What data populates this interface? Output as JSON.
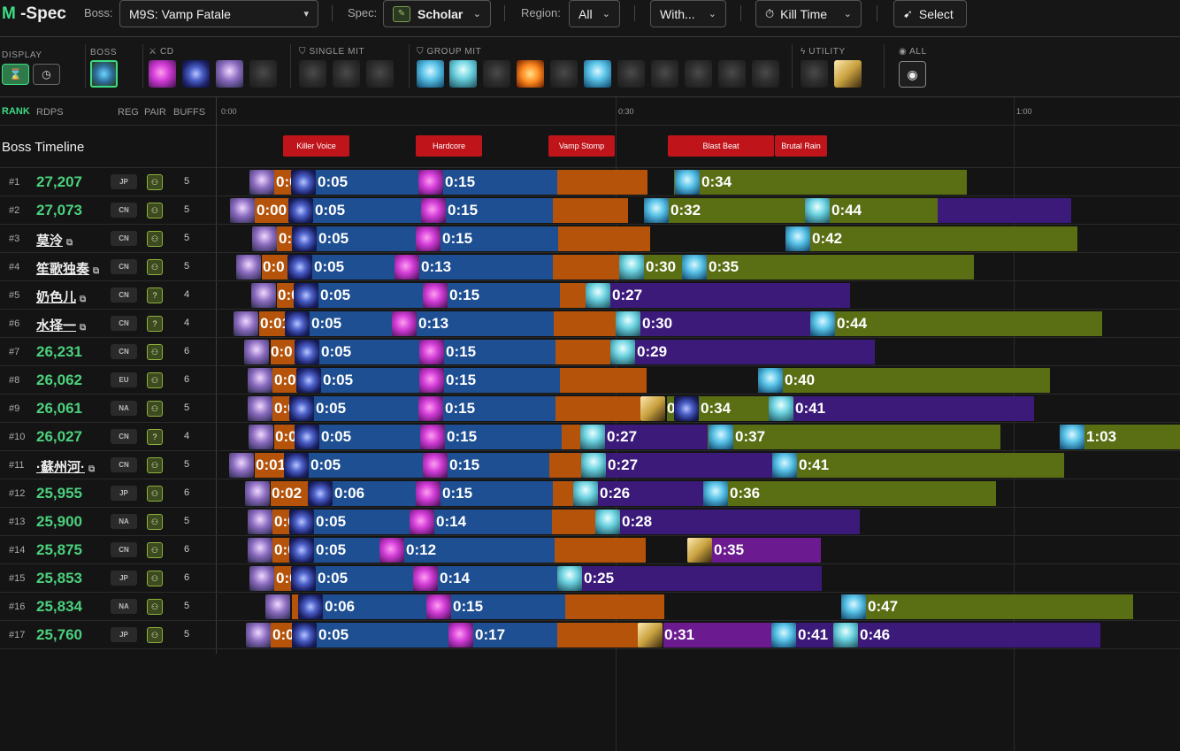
{
  "app": {
    "logo_m": "M",
    "logo_rest": " -Spec"
  },
  "topbar": {
    "boss_label": "Boss:",
    "boss_value": "M9S: Vamp Fatale",
    "spec_label": "Spec:",
    "spec_value": "Scholar",
    "region_label": "Region:",
    "region_value": "All",
    "with_value": "With...",
    "killtime_value": "Kill Time",
    "select_value": "Select"
  },
  "filters": {
    "display": "DISPLAY",
    "boss": "BOSS",
    "cd": "CD",
    "single_mit": "SINGLE MIT",
    "group_mit": "GROUP MIT",
    "utility": "UTILITY",
    "all": "ALL"
  },
  "columns": {
    "rank": "RANK",
    "rdps": "RDPS",
    "reg": "REG",
    "pair": "PAIR",
    "buffs": "BUFFS"
  },
  "timeline": {
    "ticks": [
      "0:00",
      "0:30",
      "1:00"
    ],
    "boss_label": "Boss Timeline",
    "mechanics": [
      "Killer Voice",
      "Hardcore",
      "Vamp Stomp",
      "Blast Beat",
      "Brutal Rain"
    ]
  },
  "rows": [
    {
      "rank": "#1",
      "name": "27,207",
      "reg": "JP",
      "buffs": "5",
      "l0": "0:0",
      "l1": "0:05",
      "l2": "0:15",
      "extra": [
        {
          "t": "0:34"
        }
      ]
    },
    {
      "rank": "#2",
      "name": "27,073",
      "reg": "CN",
      "buffs": "5",
      "l0": "0:00",
      "l1": "0:05",
      "l2": "0:15",
      "extra": [
        {
          "t": "0:32"
        },
        {
          "t": "0:44"
        }
      ]
    },
    {
      "rank": "#3",
      "name": "莫泠",
      "reg": "CN",
      "buffs": "5",
      "l0": "0:0",
      "l1": "0:05",
      "l2": "0:15",
      "extra": [
        {
          "t": "0:42"
        }
      ]
    },
    {
      "rank": "#4",
      "name": "笙歌独奏",
      "reg": "CN",
      "buffs": "5",
      "l0": "0:0",
      "l1": "0:05",
      "l2": "0:13",
      "extra": [
        {
          "t": "0:30"
        },
        {
          "t": "0:35"
        }
      ]
    },
    {
      "rank": "#5",
      "name": "奶色儿",
      "reg": "CN",
      "buffs": "4",
      "l0": "0:0",
      "l1": "0:05",
      "l2": "0:15",
      "extra": [
        {
          "t": "0:27"
        }
      ]
    },
    {
      "rank": "#6",
      "name": "水择一",
      "reg": "CN",
      "buffs": "4",
      "l0": "0:01",
      "l1": "0:05",
      "l2": "0:13",
      "extra": [
        {
          "t": "0:30"
        },
        {
          "t": "0:44"
        }
      ]
    },
    {
      "rank": "#7",
      "name": "26,231",
      "reg": "CN",
      "buffs": "6",
      "l0": "0:0",
      "l1": "0:05",
      "l2": "0:15",
      "extra": [
        {
          "t": "0:29"
        }
      ]
    },
    {
      "rank": "#8",
      "name": "26,062",
      "reg": "EU",
      "buffs": "6",
      "l0": "0:0",
      "l1": "0:05",
      "l2": "0:15",
      "extra": [
        {
          "t": "0:40"
        }
      ]
    },
    {
      "rank": "#9",
      "name": "26,061",
      "reg": "NA",
      "buffs": "5",
      "l0": "0:0",
      "l1": "0:05",
      "l2": "0:15",
      "extra": [
        {
          "t": "0"
        },
        {
          "t": "0:34"
        },
        {
          "t": "0:41"
        }
      ]
    },
    {
      "rank": "#10",
      "name": "26,027",
      "reg": "CN",
      "buffs": "4",
      "l0": "0:0",
      "l1": "0:05",
      "l2": "0:15",
      "extra": [
        {
          "t": "0:27"
        },
        {
          "t": "0:37"
        },
        {
          "t": "1:03"
        }
      ]
    },
    {
      "rank": "#11",
      "name": "·蘇州河·",
      "reg": "CN",
      "buffs": "5",
      "l0": "0:01",
      "l1": "0:05",
      "l2": "0:15",
      "extra": [
        {
          "t": "0:27"
        },
        {
          "t": "0:41"
        }
      ]
    },
    {
      "rank": "#12",
      "name": "25,955",
      "reg": "JP",
      "buffs": "6",
      "l0": "0:02",
      "l1": "0:06",
      "l2": "0:15",
      "extra": [
        {
          "t": "0:26"
        },
        {
          "t": "0:36"
        }
      ]
    },
    {
      "rank": "#13",
      "name": "25,900",
      "reg": "NA",
      "buffs": "5",
      "l0": "0:0",
      "l1": "0:05",
      "l2": "0:14",
      "extra": [
        {
          "t": "0:28"
        }
      ]
    },
    {
      "rank": "#14",
      "name": "25,875",
      "reg": "CN",
      "buffs": "6",
      "l0": "0:0",
      "l1": "0:05",
      "l2": "0:12",
      "extra": [
        {
          "t": "0:35"
        }
      ]
    },
    {
      "rank": "#15",
      "name": "25,853",
      "reg": "JP",
      "buffs": "6",
      "l0": "0:0",
      "l1": "0:05",
      "l2": "0:14",
      "extra": [
        {
          "t": "0:25"
        }
      ]
    },
    {
      "rank": "#16",
      "name": "25,834",
      "reg": "NA",
      "buffs": "5",
      "l0": "",
      "l1": "0:06",
      "l2": "0:15",
      "extra": [
        {
          "t": "0:47"
        }
      ]
    },
    {
      "rank": "#17",
      "name": "25,760",
      "reg": "JP",
      "buffs": "5",
      "l0": "0:0",
      "l1": "0:05",
      "l2": "0:17",
      "extra": [
        {
          "t": "0:31"
        },
        {
          "t": "0:41"
        },
        {
          "t": "0:46"
        }
      ]
    }
  ]
}
